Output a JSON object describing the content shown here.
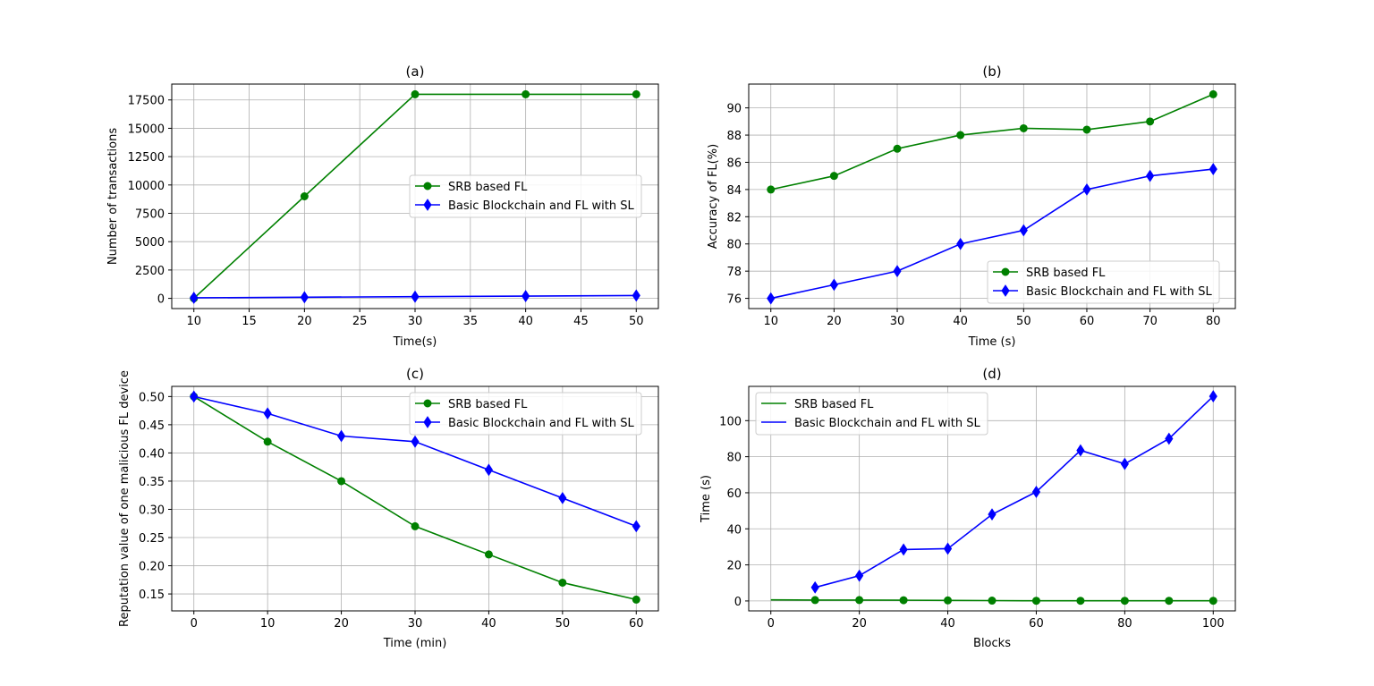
{
  "chart_data": [
    {
      "type": "line",
      "panel": "(a)",
      "title": "(a)",
      "xlabel": "Time(s)",
      "ylabel": "Number of transactions",
      "xlim": [
        8,
        52
      ],
      "ylim": [
        -900,
        18900
      ],
      "xticks": [
        10,
        15,
        20,
        25,
        30,
        35,
        40,
        45,
        50
      ],
      "yticks": [
        0,
        2500,
        5000,
        7500,
        10000,
        12500,
        15000,
        17500
      ],
      "grid": true,
      "legend_position": "center-right",
      "series": [
        {
          "name": "SRB based FL",
          "color": "#008000",
          "marker": "circle",
          "x": [
            10,
            20,
            30,
            40,
            50
          ],
          "y": [
            0,
            9000,
            18000,
            18000,
            18000
          ]
        },
        {
          "name": "Basic Blockchain and FL with SL",
          "color": "#0000ff",
          "marker": "diamond",
          "x": [
            10,
            20,
            30,
            40,
            50
          ],
          "y": [
            50,
            100,
            150,
            200,
            250
          ]
        }
      ]
    },
    {
      "type": "line",
      "panel": "(b)",
      "title": "(b)",
      "xlabel": "Time (s)",
      "ylabel": "Accuracy of FL(%)",
      "xlim": [
        6.5,
        83.5
      ],
      "ylim": [
        75.25,
        91.75
      ],
      "xticks": [
        10,
        20,
        30,
        40,
        50,
        60,
        70,
        80
      ],
      "yticks": [
        76,
        78,
        80,
        82,
        84,
        86,
        88,
        90
      ],
      "grid": true,
      "legend_position": "lower-right",
      "series": [
        {
          "name": "SRB based FL",
          "color": "#008000",
          "marker": "circle",
          "x": [
            10,
            20,
            30,
            40,
            50,
            60,
            70,
            80
          ],
          "y": [
            84,
            85,
            87,
            88,
            88.5,
            88.4,
            89,
            91
          ]
        },
        {
          "name": "Basic Blockchain and FL with SL",
          "color": "#0000ff",
          "marker": "diamond",
          "x": [
            10,
            20,
            30,
            40,
            50,
            60,
            70,
            80
          ],
          "y": [
            76,
            77,
            78,
            80,
            81,
            84,
            85,
            85.5
          ]
        }
      ]
    },
    {
      "type": "line",
      "panel": "(c)",
      "title": "(c)",
      "xlabel": "Time (min)",
      "ylabel": "Reputation value of one malicious FL device",
      "xlim": [
        -3,
        63
      ],
      "ylim": [
        0.12,
        0.518
      ],
      "xticks": [
        0,
        10,
        20,
        30,
        40,
        50,
        60
      ],
      "yticks": [
        0.15,
        0.2,
        0.25,
        0.3,
        0.35,
        0.4,
        0.45,
        0.5
      ],
      "ytick_labels": [
        "0.15",
        "0.20",
        "0.25",
        "0.30",
        "0.35",
        "0.40",
        "0.45",
        "0.50"
      ],
      "grid": true,
      "legend_position": "upper-right",
      "series": [
        {
          "name": "SRB based FL",
          "color": "#008000",
          "marker": "circle",
          "x": [
            0,
            10,
            20,
            30,
            40,
            50,
            60
          ],
          "y": [
            0.5,
            0.42,
            0.35,
            0.27,
            0.22,
            0.17,
            0.14
          ]
        },
        {
          "name": "Basic Blockchain and FL with SL",
          "color": "#0000ff",
          "marker": "diamond",
          "x": [
            0,
            10,
            20,
            30,
            40,
            50,
            60
          ],
          "y": [
            0.5,
            0.47,
            0.43,
            0.42,
            0.37,
            0.32,
            0.27
          ]
        }
      ]
    },
    {
      "type": "line",
      "panel": "(d)",
      "title": "(d)",
      "xlabel": "Blocks",
      "ylabel": "Time (s)",
      "xlim": [
        -5,
        105
      ],
      "ylim": [
        -5.5,
        119
      ],
      "xticks": [
        0,
        20,
        40,
        60,
        80,
        100
      ],
      "yticks": [
        0,
        20,
        40,
        60,
        80,
        100
      ],
      "grid": true,
      "legend_position": "upper-left",
      "series": [
        {
          "name": "SRB based FL",
          "color": "#008000",
          "marker": "none",
          "legend_marker": "none",
          "x": [
            0,
            10,
            20,
            30,
            40,
            50,
            60,
            70,
            80,
            90,
            100
          ],
          "y": [
            0.6,
            0.5,
            0.5,
            0.4,
            0.3,
            0.2,
            0.1,
            0.1,
            0.1,
            0.1,
            0.1
          ],
          "point_marker": "circle",
          "point_marker_from_index": 1
        },
        {
          "name": "Basic Blockchain and FL with SL",
          "color": "#0000ff",
          "marker": "diamond",
          "legend_marker": "none",
          "x": [
            10,
            20,
            30,
            40,
            50,
            60,
            70,
            80,
            90,
            100
          ],
          "y": [
            7.5,
            14,
            28.5,
            29,
            48,
            60.5,
            83.5,
            76,
            90,
            113.5
          ]
        }
      ]
    }
  ]
}
